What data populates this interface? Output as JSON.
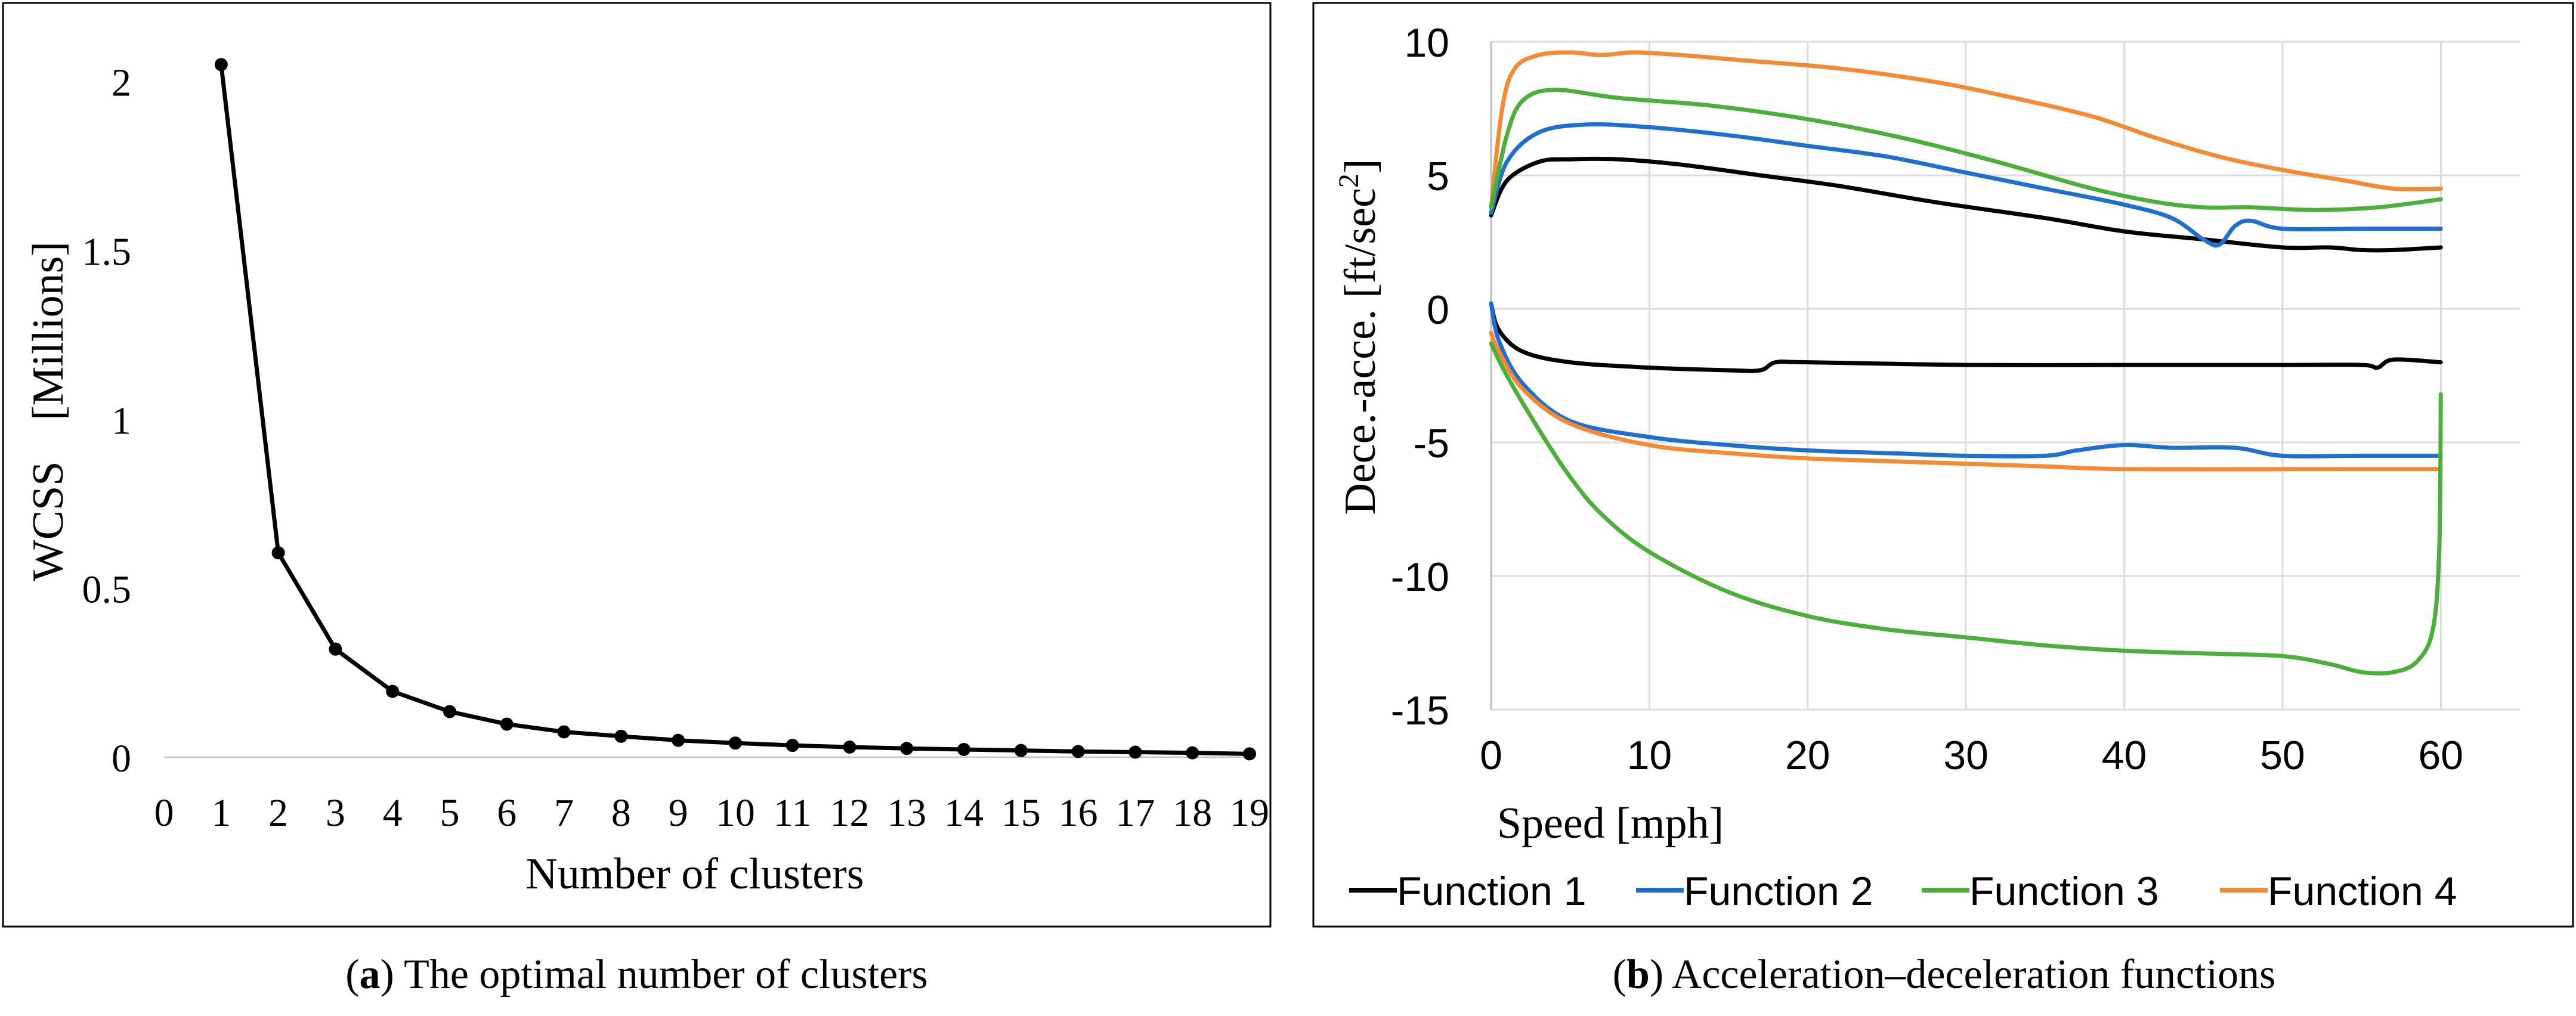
{
  "figure_a": {
    "caption_letter": "a",
    "caption_text": "The optimal number of clusters",
    "chart_data": {
      "type": "line",
      "title": "",
      "xlabel": "Number of clusters",
      "ylabel": "WCSS",
      "ylabel_unit": "[Millions]",
      "x": [
        1,
        2,
        3,
        4,
        5,
        6,
        7,
        8,
        9,
        10,
        11,
        12,
        13,
        14,
        15,
        16,
        17,
        18,
        19
      ],
      "values": [
        2.05,
        0.605,
        0.32,
        0.195,
        0.135,
        0.098,
        0.075,
        0.062,
        0.05,
        0.042,
        0.035,
        0.03,
        0.026,
        0.023,
        0.02,
        0.017,
        0.015,
        0.013,
        0.01
      ],
      "xlim": [
        0,
        19
      ],
      "ylim": [
        0,
        2.1
      ],
      "x_ticks": [
        "0",
        "1",
        "2",
        "3",
        "4",
        "5",
        "6",
        "7",
        "8",
        "9",
        "10",
        "11",
        "12",
        "13",
        "14",
        "15",
        "16",
        "17",
        "18",
        "19"
      ],
      "y_ticks": [
        {
          "value": 0,
          "label": "0"
        },
        {
          "value": 0.5,
          "label": "0.5"
        },
        {
          "value": 1,
          "label": "1"
        },
        {
          "value": 1.5,
          "label": "1.5"
        },
        {
          "value": 2,
          "label": "2"
        }
      ],
      "color": "#000000"
    }
  },
  "figure_b": {
    "caption_letter": "b",
    "caption_text": "Acceleration–deceleration functions",
    "chart_data": {
      "type": "line",
      "title": "",
      "xlabel": "Speed [mph]",
      "ylabel": "Dece.-acce. [ft/sec",
      "ylabel_sup": "2",
      "ylabel_close": "]",
      "xlim": [
        0,
        65
      ],
      "ylim": [
        -15,
        10
      ],
      "x_ticks": [
        {
          "value": 0,
          "label": "0"
        },
        {
          "value": 10,
          "label": "10"
        },
        {
          "value": 20,
          "label": "20"
        },
        {
          "value": 30,
          "label": "30"
        },
        {
          "value": 40,
          "label": "40"
        },
        {
          "value": 50,
          "label": "50"
        },
        {
          "value": 60,
          "label": "60"
        }
      ],
      "y_ticks": [
        {
          "value": 10,
          "label": "10"
        },
        {
          "value": 5,
          "label": "5"
        },
        {
          "value": 0,
          "label": "0"
        },
        {
          "value": -5,
          "label": "-5"
        },
        {
          "value": -10,
          "label": "-10"
        },
        {
          "value": -15,
          "label": "-15"
        }
      ],
      "grid": true,
      "legend_position": "bottom",
      "series": [
        {
          "name": "Function 1",
          "color": "#000000",
          "accel": [
            [
              0,
              3.5
            ],
            [
              1,
              4.8
            ],
            [
              3,
              5.5
            ],
            [
              5,
              5.6
            ],
            [
              8,
              5.6
            ],
            [
              12,
              5.4
            ],
            [
              17,
              5.0
            ],
            [
              22,
              4.6
            ],
            [
              28,
              4.0
            ],
            [
              35,
              3.4
            ],
            [
              40,
              2.9
            ],
            [
              45,
              2.6
            ],
            [
              50,
              2.3
            ],
            [
              53,
              2.3
            ],
            [
              55,
              2.2
            ],
            [
              57,
              2.2
            ],
            [
              60,
              2.3
            ]
          ],
          "decel": [
            [
              0,
              0.2
            ],
            [
              0.5,
              -0.8
            ],
            [
              2,
              -1.6
            ],
            [
              5,
              -2.0
            ],
            [
              10,
              -2.2
            ],
            [
              15,
              -2.3
            ],
            [
              17,
              -2.3
            ],
            [
              18,
              -2.0
            ],
            [
              20,
              -2.0
            ],
            [
              30,
              -2.1
            ],
            [
              40,
              -2.1
            ],
            [
              50,
              -2.1
            ],
            [
              55,
              -2.1
            ],
            [
              56,
              -2.2
            ],
            [
              57,
              -1.9
            ],
            [
              60,
              -2.0
            ]
          ]
        },
        {
          "name": "Function 2",
          "color": "#1f6fcf",
          "accel": [
            [
              0,
              3.6
            ],
            [
              1,
              5.5
            ],
            [
              3,
              6.6
            ],
            [
              6,
              6.9
            ],
            [
              10,
              6.8
            ],
            [
              15,
              6.5
            ],
            [
              20,
              6.1
            ],
            [
              25,
              5.7
            ],
            [
              30,
              5.1
            ],
            [
              35,
              4.5
            ],
            [
              40,
              3.9
            ],
            [
              43,
              3.4
            ],
            [
              45,
              2.6
            ],
            [
              46,
              2.4
            ],
            [
              47,
              3.1
            ],
            [
              48,
              3.3
            ],
            [
              50,
              3.0
            ],
            [
              55,
              3.0
            ],
            [
              60,
              3.0
            ]
          ],
          "decel": [
            [
              0,
              0.2
            ],
            [
              0.5,
              -1.2
            ],
            [
              2,
              -2.8
            ],
            [
              5,
              -4.2
            ],
            [
              10,
              -4.8
            ],
            [
              15,
              -5.1
            ],
            [
              20,
              -5.3
            ],
            [
              25,
              -5.4
            ],
            [
              30,
              -5.5
            ],
            [
              35,
              -5.5
            ],
            [
              37,
              -5.3
            ],
            [
              40,
              -5.1
            ],
            [
              43,
              -5.2
            ],
            [
              47,
              -5.2
            ],
            [
              50,
              -5.5
            ],
            [
              55,
              -5.5
            ],
            [
              60,
              -5.5
            ]
          ]
        },
        {
          "name": "Function 3",
          "color": "#4caf3a",
          "accel": [
            [
              0,
              3.8
            ],
            [
              1,
              6.5
            ],
            [
              2,
              7.8
            ],
            [
              4,
              8.2
            ],
            [
              8,
              7.9
            ],
            [
              14,
              7.6
            ],
            [
              20,
              7.1
            ],
            [
              26,
              6.4
            ],
            [
              32,
              5.5
            ],
            [
              38,
              4.5
            ],
            [
              42,
              4.0
            ],
            [
              45,
              3.8
            ],
            [
              48,
              3.8
            ],
            [
              52,
              3.7
            ],
            [
              56,
              3.8
            ],
            [
              60,
              4.1
            ]
          ],
          "decel": [
            [
              0,
              -1.3
            ],
            [
              1,
              -2.5
            ],
            [
              3,
              -4.5
            ],
            [
              5,
              -6.3
            ],
            [
              7,
              -7.7
            ],
            [
              10,
              -9.1
            ],
            [
              15,
              -10.6
            ],
            [
              20,
              -11.5
            ],
            [
              25,
              -12.0
            ],
            [
              30,
              -12.3
            ],
            [
              35,
              -12.6
            ],
            [
              40,
              -12.8
            ],
            [
              45,
              -12.9
            ],
            [
              50,
              -13.0
            ],
            [
              53,
              -13.3
            ],
            [
              55,
              -13.6
            ],
            [
              57,
              -13.6
            ],
            [
              58.5,
              -13.2
            ],
            [
              59.5,
              -12.0
            ],
            [
              59.9,
              -9.0
            ],
            [
              60,
              -3.2
            ]
          ]
        },
        {
          "name": "Function 4",
          "color": "#f58a35",
          "accel": [
            [
              0,
              3.8
            ],
            [
              0.7,
              7.5
            ],
            [
              1.5,
              9.0
            ],
            [
              3,
              9.5
            ],
            [
              5,
              9.6
            ],
            [
              7,
              9.5
            ],
            [
              9,
              9.6
            ],
            [
              12,
              9.5
            ],
            [
              16,
              9.3
            ],
            [
              22,
              9.0
            ],
            [
              28,
              8.5
            ],
            [
              33,
              7.9
            ],
            [
              38,
              7.2
            ],
            [
              42,
              6.4
            ],
            [
              46,
              5.7
            ],
            [
              50,
              5.2
            ],
            [
              54,
              4.8
            ],
            [
              57,
              4.5
            ],
            [
              60,
              4.5
            ]
          ],
          "decel": [
            [
              0,
              -0.9
            ],
            [
              0.5,
              -1.6
            ],
            [
              2,
              -3.0
            ],
            [
              5,
              -4.3
            ],
            [
              10,
              -5.1
            ],
            [
              15,
              -5.4
            ],
            [
              20,
              -5.6
            ],
            [
              25,
              -5.7
            ],
            [
              30,
              -5.8
            ],
            [
              35,
              -5.9
            ],
            [
              40,
              -6.0
            ],
            [
              50,
              -6.0
            ],
            [
              55,
              -6.0
            ],
            [
              60,
              -6.0
            ]
          ]
        }
      ]
    }
  }
}
